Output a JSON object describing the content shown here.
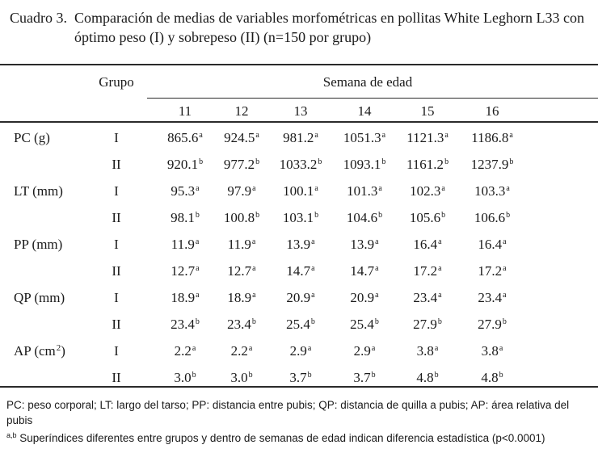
{
  "caption": {
    "label": "Cuadro 3.",
    "text": "Comparación de medias de variables morfométricas en pollitas White Leghorn L33 con óptimo peso (I) y sobrepeso (II) (n=150 por grupo)"
  },
  "header": {
    "grupo": "Grupo",
    "semana": "Semana de edad",
    "weeks": [
      "11",
      "12",
      "13",
      "14",
      "15",
      "16"
    ]
  },
  "variables": [
    {
      "label": "PC (g)",
      "sup": "",
      "rows": [
        {
          "group": "I",
          "values": [
            [
              "865.6",
              "a"
            ],
            [
              "924.5",
              "a"
            ],
            [
              "981.2",
              "a"
            ],
            [
              "1051.3",
              "a"
            ],
            [
              "1121.3",
              "a"
            ],
            [
              "1186.8",
              "a"
            ]
          ]
        },
        {
          "group": "II",
          "values": [
            [
              "920.1",
              "b"
            ],
            [
              "977.2",
              "b"
            ],
            [
              "1033.2",
              "b"
            ],
            [
              "1093.1",
              "b"
            ],
            [
              "1161.2",
              "b"
            ],
            [
              "1237.9",
              "b"
            ]
          ]
        }
      ]
    },
    {
      "label": "LT (mm)",
      "sup": "",
      "rows": [
        {
          "group": "I",
          "values": [
            [
              "95.3",
              "a"
            ],
            [
              "97.9",
              "a"
            ],
            [
              "100.1",
              "a"
            ],
            [
              "101.3",
              "a"
            ],
            [
              "102.3",
              "a"
            ],
            [
              "103.3",
              "a"
            ]
          ]
        },
        {
          "group": "II",
          "values": [
            [
              "98.1",
              "b"
            ],
            [
              "100.8",
              "b"
            ],
            [
              "103.1",
              "b"
            ],
            [
              "104.6",
              "b"
            ],
            [
              "105.6",
              "b"
            ],
            [
              "106.6",
              "b"
            ]
          ]
        }
      ]
    },
    {
      "label": "PP (mm)",
      "sup": "",
      "rows": [
        {
          "group": "I",
          "values": [
            [
              "11.9",
              "a"
            ],
            [
              "11.9",
              "a"
            ],
            [
              "13.9",
              "a"
            ],
            [
              "13.9",
              "a"
            ],
            [
              "16.4",
              "a"
            ],
            [
              "16.4",
              "a"
            ]
          ]
        },
        {
          "group": "II",
          "values": [
            [
              "12.7",
              "a"
            ],
            [
              "12.7",
              "a"
            ],
            [
              "14.7",
              "a"
            ],
            [
              "14.7",
              "a"
            ],
            [
              "17.2",
              "a"
            ],
            [
              "17.2",
              "a"
            ]
          ]
        }
      ]
    },
    {
      "label": "QP (mm)",
      "sup": "",
      "rows": [
        {
          "group": "I",
          "values": [
            [
              "18.9",
              "a"
            ],
            [
              "18.9",
              "a"
            ],
            [
              "20.9",
              "a"
            ],
            [
              "20.9",
              "a"
            ],
            [
              "23.4",
              "a"
            ],
            [
              "23.4",
              "a"
            ]
          ]
        },
        {
          "group": "II",
          "values": [
            [
              "23.4",
              "b"
            ],
            [
              "23.4",
              "b"
            ],
            [
              "25.4",
              "b"
            ],
            [
              "25.4",
              "b"
            ],
            [
              "27.9",
              "b"
            ],
            [
              "27.9",
              "b"
            ]
          ]
        }
      ]
    },
    {
      "label": "AP (cm",
      "sup": "2",
      "label_end": ")",
      "rows": [
        {
          "group": "I",
          "values": [
            [
              "2.2",
              "a"
            ],
            [
              "2.2",
              "a"
            ],
            [
              "2.9",
              "a"
            ],
            [
              "2.9",
              "a"
            ],
            [
              "3.8",
              "a"
            ],
            [
              "3.8",
              "a"
            ]
          ]
        },
        {
          "group": "II",
          "values": [
            [
              "3.0",
              "b"
            ],
            [
              "3.0",
              "b"
            ],
            [
              "3.7",
              "b"
            ],
            [
              "3.7",
              "b"
            ],
            [
              "4.8",
              "b"
            ],
            [
              "4.8",
              "b"
            ]
          ]
        }
      ]
    }
  ],
  "notes": {
    "abbrev": "PC: peso corporal; LT: largo del tarso; PP: distancia entre pubis; QP: distancia de quilla a  pubis; AP: área relativa del pubis",
    "sup_label": "a,b",
    "sup_text": " Superíndices diferentes entre grupos y dentro de semanas de edad indican diferencia estadística (p<0.0001)"
  }
}
